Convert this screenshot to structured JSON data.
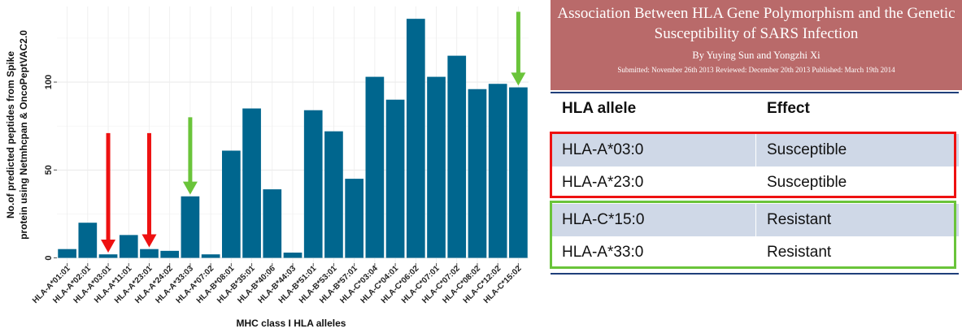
{
  "chart_data": {
    "type": "bar",
    "categories": [
      "HLA-A*01:01",
      "HLA-A*02:01",
      "HLA-A*03:01",
      "HLA-A*11:01",
      "HLA-A*23:01",
      "HLA-A*24:02",
      "HLA-A*33:03",
      "HLA-A*07:02",
      "HLA-B*08:01",
      "HLA-B*35:01",
      "HLA-B*40:06",
      "HLA-B*44:03",
      "HLA-B*51:01",
      "HLA-B*53:01",
      "HLA-B*57:01",
      "HLA-C*03:04",
      "HLA-C*04:01",
      "HLA-C*06:02",
      "HLA-C*07:01",
      "HLA-C*07:02",
      "HLA-C*08:02",
      "HLA-C*12:02",
      "HLA-C*15:02"
    ],
    "values": [
      5,
      20,
      2,
      13,
      5,
      4,
      35,
      2,
      61,
      85,
      39,
      3,
      84,
      72,
      45,
      103,
      90,
      136,
      103,
      115,
      96,
      99,
      97
    ],
    "bar_color": "#00668e",
    "xlabel": "MHC class I HLA alleles",
    "ylabel_line1": "No.of predicted peptides from Spike",
    "ylabel_line2": "protein using Netmhcpan & OncoPeptVAC2.0",
    "ylim": [
      -3,
      143
    ],
    "yticks": [
      0,
      50,
      100
    ],
    "grid": true,
    "annotations": [
      {
        "type": "arrow",
        "category_index": 2,
        "color": "#ee1111",
        "from_y": 71,
        "to_y": 3
      },
      {
        "type": "arrow",
        "category_index": 4,
        "color": "#ee1111",
        "from_y": 71,
        "to_y": 6
      },
      {
        "type": "arrow",
        "category_index": 6,
        "color": "#6ac43a",
        "from_y": 80,
        "to_y": 36
      },
      {
        "type": "arrow",
        "category_index": 22,
        "color": "#6ac43a",
        "from_y": 140,
        "to_y": 98
      }
    ]
  },
  "paper": {
    "title_line1": "Association Between HLA Gene Polymorphism and the Genetic",
    "title_line2": "Susceptibility of SARS Infection",
    "authors": "By Yuying Sun and Yongzhi Xi",
    "dates": "Submitted: November 26th 2013  Reviewed: December 20th 2013  Published: March 19th 2014",
    "banner_color": "#b96a6a"
  },
  "table": {
    "headers": [
      "HLA allele",
      "Effect"
    ],
    "rows": [
      {
        "allele": "HLA-A*03:0",
        "effect": "Susceptible"
      },
      {
        "allele": "HLA-A*23:0",
        "effect": "Susceptible"
      },
      {
        "allele": "HLA-C*15:0",
        "effect": "Resistant"
      },
      {
        "allele": "HLA-A*33:0",
        "effect": "Resistant"
      }
    ],
    "susceptible_box_color": "#ee1111",
    "resistant_box_color": "#6ac43a"
  }
}
